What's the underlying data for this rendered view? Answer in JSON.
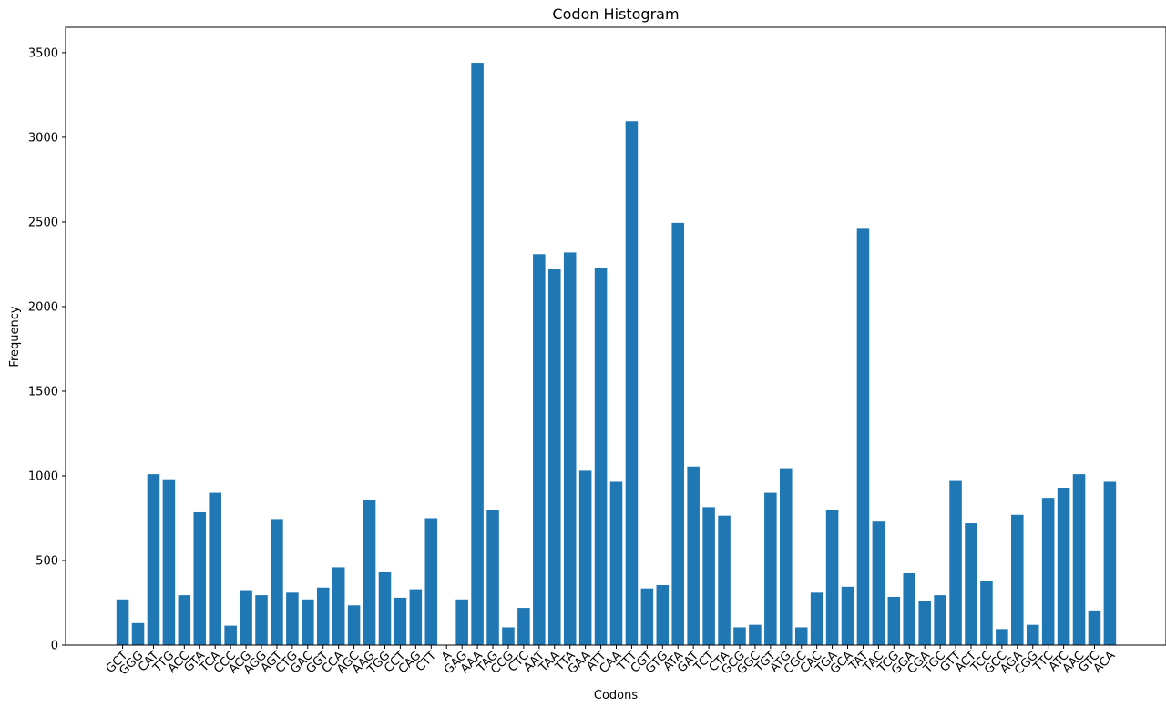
{
  "chart_data": {
    "type": "bar",
    "title": "Codon Histogram",
    "xlabel": "Codons",
    "ylabel": "Frequency",
    "ylim": [
      0,
      3650
    ],
    "yticks": [
      0,
      500,
      1000,
      1500,
      2000,
      2500,
      3000,
      3500
    ],
    "bar_color": "#1f77b4",
    "grid": false,
    "categories": [
      "GCT",
      "GGG",
      "CAT",
      "TTG",
      "ACC",
      "GTA",
      "TCA",
      "CCC",
      "ACG",
      "AGG",
      "AGT",
      "CTG",
      "GAC",
      "GGT",
      "CCA",
      "AGC",
      "AAG",
      "TGG",
      "CCT",
      "CAG",
      "CTT",
      "A",
      "GAG",
      "AAA",
      "TAG",
      "CCG",
      "CTC",
      "AAT",
      "TAA",
      "TTA",
      "GAA",
      "ATT",
      "CAA",
      "TTT",
      "CGT",
      "GTG",
      "ATA",
      "GAT",
      "TCT",
      "CTA",
      "GCG",
      "GGC",
      "TGT",
      "ATG",
      "CGC",
      "CAC",
      "TGA",
      "GCA",
      "TAT",
      "TAC",
      "TCG",
      "GGA",
      "CGA",
      "TGC",
      "GTT",
      "ACT",
      "TCC",
      "GCC",
      "AGA",
      "CGG",
      "TTC",
      "ATC",
      "AAC",
      "GTC",
      "ACA"
    ],
    "values": [
      270,
      130,
      1010,
      980,
      295,
      785,
      900,
      115,
      325,
      295,
      745,
      310,
      270,
      340,
      460,
      235,
      860,
      430,
      280,
      330,
      750,
      1,
      270,
      3440,
      800,
      105,
      220,
      2310,
      2220,
      2320,
      1030,
      2230,
      965,
      3095,
      335,
      355,
      2495,
      1055,
      815,
      765,
      105,
      120,
      900,
      1045,
      105,
      310,
      800,
      345,
      2460,
      730,
      285,
      425,
      260,
      295,
      970,
      720,
      380,
      95,
      770,
      120,
      870,
      930,
      1010,
      205,
      965
    ]
  }
}
